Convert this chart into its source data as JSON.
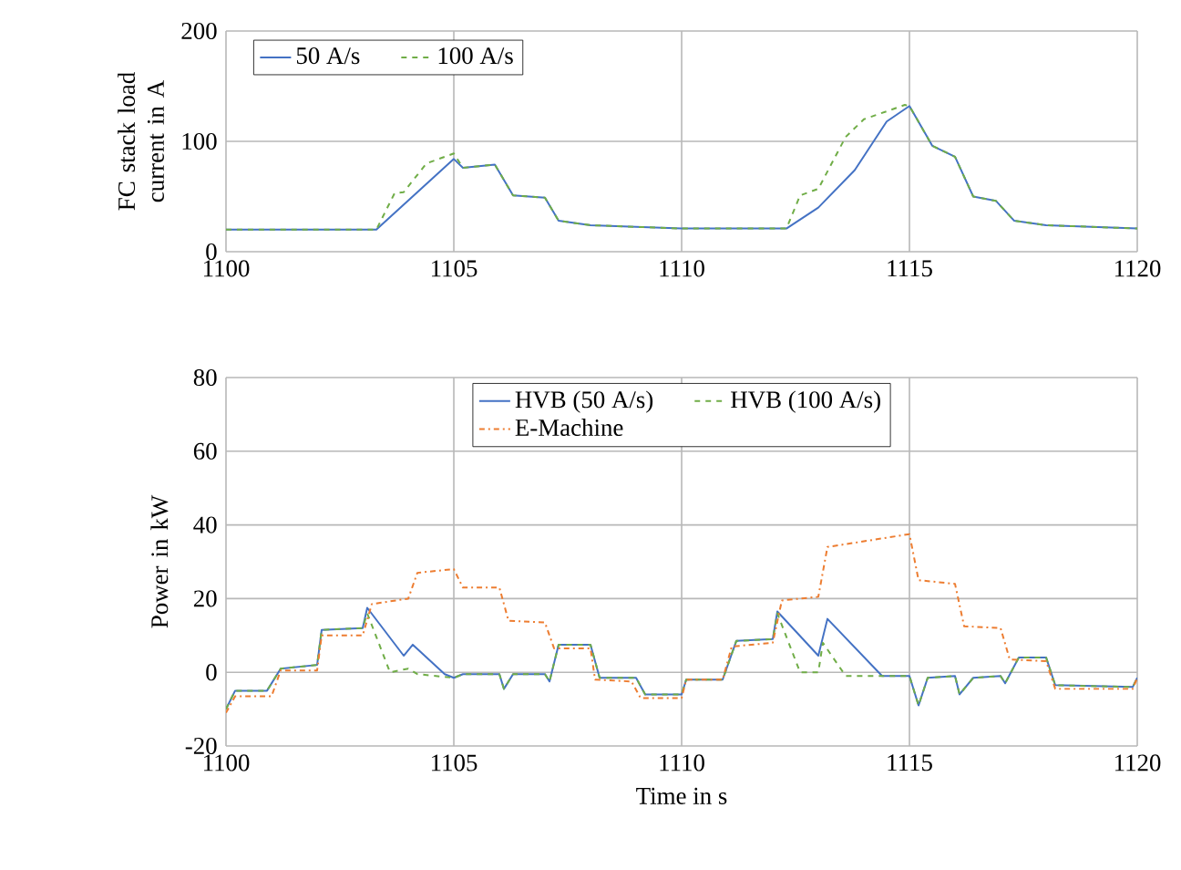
{
  "chart_data": [
    {
      "type": "line",
      "ylabel": "FC stack load current in A",
      "xlim": [
        1100,
        1120
      ],
      "ylim": [
        0,
        200
      ],
      "xticks": [
        1100,
        1105,
        1110,
        1115,
        1120
      ],
      "yticks": [
        0,
        100,
        200
      ],
      "grid": true,
      "legend": "top left",
      "series": [
        {
          "name": "50 A/s",
          "color": "#4472c4",
          "line_style": "solid",
          "x": [
            1100,
            1103.3,
            1104.2,
            1105,
            1105.2,
            1105.9,
            1106.3,
            1107,
            1107.3,
            1108,
            1110,
            1112.3,
            1113,
            1113.8,
            1114.5,
            1115,
            1115.5,
            1116,
            1116.4,
            1116.9,
            1117.3,
            1118,
            1120
          ],
          "values": [
            20,
            20,
            54,
            84,
            76,
            79,
            51,
            49,
            28,
            24,
            21,
            21,
            40,
            74,
            118,
            132,
            96,
            86,
            50,
            46,
            28,
            24,
            21
          ]
        },
        {
          "name": "100 A/s",
          "color": "#70ad47",
          "line_style": "dashed",
          "x": [
            1100,
            1103.3,
            1103.7,
            1103.9,
            1104.4,
            1105,
            1105.2,
            1105.9,
            1106.3,
            1107,
            1107.3,
            1108,
            1110,
            1112.3,
            1112.6,
            1113,
            1113.6,
            1114,
            1114.9,
            1115,
            1115.5,
            1116,
            1116.4,
            1116.9,
            1117.3,
            1118,
            1120
          ],
          "values": [
            20,
            20,
            53,
            54,
            80,
            89,
            76,
            79,
            51,
            49,
            28,
            24,
            21,
            21,
            51,
            57,
            104,
            120,
            133,
            132,
            96,
            86,
            50,
            46,
            28,
            24,
            21
          ]
        }
      ]
    },
    {
      "type": "line",
      "xlabel": "Time in s",
      "ylabel": "Power in kW",
      "xlim": [
        1100,
        1120
      ],
      "ylim": [
        -20,
        80
      ],
      "xticks": [
        1100,
        1105,
        1110,
        1115,
        1120
      ],
      "yticks": [
        -20,
        0,
        20,
        40,
        60,
        80
      ],
      "grid": true,
      "legend": "top",
      "series": [
        {
          "name": "HVB (50 A/s)",
          "color": "#4472c4",
          "line_style": "solid",
          "x": [
            1100,
            1100.2,
            1100.9,
            1101.2,
            1102,
            1102.1,
            1103,
            1103.1,
            1103.9,
            1104.1,
            1104.8,
            1105,
            1105.2,
            1106,
            1106.1,
            1106.3,
            1107,
            1107.1,
            1107.3,
            1108,
            1108.2,
            1109,
            1109.2,
            1110,
            1110.1,
            1110.9,
            1111.2,
            1112,
            1112.1,
            1113,
            1113.2,
            1114.4,
            1115,
            1115.2,
            1115.4,
            1116,
            1116.1,
            1116.4,
            1117,
            1117.1,
            1117.4,
            1118,
            1118.2,
            1119.9,
            1120
          ],
          "values": [
            -10,
            -5,
            -5,
            1,
            2,
            11.5,
            12,
            17.5,
            4.5,
            7.5,
            -0.5,
            -1.5,
            -0.5,
            -0.5,
            -4.5,
            -0.5,
            -0.5,
            -2.5,
            7.5,
            7.5,
            -1.5,
            -1.5,
            -6,
            -6,
            -2,
            -2,
            8.5,
            9,
            16.5,
            4.5,
            14.5,
            -1,
            -1,
            -9,
            -1.5,
            -1,
            -6,
            -1.5,
            -1,
            -3,
            4,
            4,
            -3.5,
            -4,
            -1.5
          ]
        },
        {
          "name": "HVB (100 A/s)",
          "color": "#70ad47",
          "line_style": "dashed",
          "x": [
            1100,
            1100.2,
            1100.9,
            1101.2,
            1102,
            1102.1,
            1103,
            1103.1,
            1103.6,
            1104,
            1104.2,
            1105,
            1105.2,
            1106,
            1106.1,
            1106.3,
            1107,
            1107.1,
            1107.3,
            1108,
            1108.2,
            1109,
            1109.2,
            1110,
            1110.1,
            1110.9,
            1111.2,
            1112,
            1112.1,
            1112.6,
            1113,
            1113.1,
            1113.6,
            1115,
            1115.2,
            1115.4,
            1116,
            1116.1,
            1116.4,
            1117,
            1117.1,
            1117.4,
            1118,
            1118.2,
            1119.9,
            1120
          ],
          "values": [
            -10,
            -5,
            -5,
            1,
            2,
            11.5,
            12,
            16,
            0,
            1,
            -0.5,
            -1.5,
            -0.5,
            -0.5,
            -4.5,
            -0.5,
            -0.5,
            -2.5,
            7.5,
            7.5,
            -1.5,
            -1.5,
            -6,
            -6,
            -2,
            -2,
            8.5,
            9,
            16,
            0,
            0,
            8,
            -1,
            -1,
            -9,
            -1.5,
            -1,
            -6,
            -1.5,
            -1,
            -3,
            4,
            4,
            -3.5,
            -4,
            -1.5
          ]
        },
        {
          "name": "E-Machine",
          "color": "#ed7d31",
          "line_style": "dashdot",
          "x": [
            1100,
            1100.2,
            1101,
            1101.2,
            1102,
            1102.1,
            1103,
            1103.2,
            1104,
            1104.2,
            1105,
            1105.2,
            1106,
            1106.2,
            1107,
            1107.2,
            1108,
            1108.1,
            1108.9,
            1109.1,
            1110,
            1110.1,
            1110.9,
            1111.1,
            1112,
            1112.2,
            1113,
            1113.2,
            1115,
            1115.2,
            1116,
            1116.2,
            1117,
            1117.2,
            1118,
            1118.2,
            1119.9,
            1120
          ],
          "values": [
            -11,
            -6.5,
            -6.5,
            0.5,
            0.5,
            10,
            10,
            18.5,
            20,
            27,
            28,
            23,
            23,
            14,
            13.5,
            6.5,
            6.5,
            -2,
            -2.5,
            -7,
            -7,
            -2,
            -2,
            7,
            8,
            19.5,
            20.5,
            34,
            37.5,
            25,
            24,
            12.5,
            12,
            3.5,
            3,
            -4.5,
            -4.5,
            -1.5
          ]
        }
      ]
    }
  ]
}
